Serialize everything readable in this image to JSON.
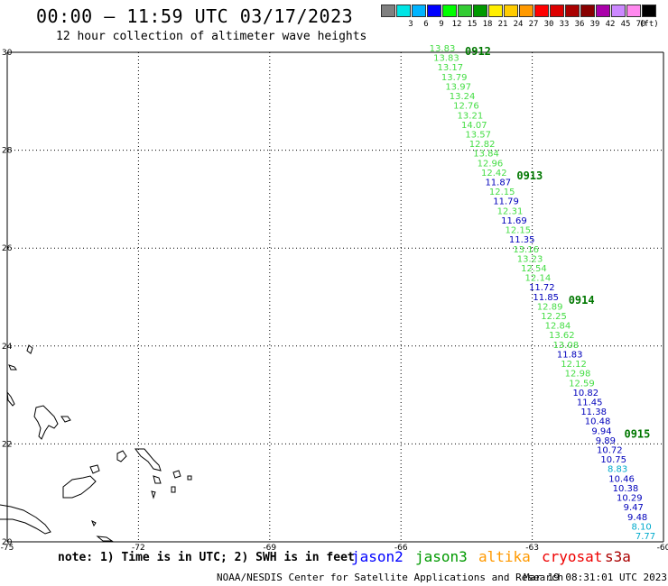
{
  "header": {
    "title": "00:00 – 11:59 UTC 03/17/2023",
    "subtitle": "12 hour collection of altimeter wave heights"
  },
  "legend": {
    "items": [
      {
        "label": "",
        "color": "#808080"
      },
      {
        "label": "3",
        "color": "#00e5e5"
      },
      {
        "label": "6",
        "color": "#00b4ff"
      },
      {
        "label": "9",
        "color": "#0000ff"
      },
      {
        "label": "12",
        "color": "#00ff00"
      },
      {
        "label": "15",
        "color": "#33cc33"
      },
      {
        "label": "18",
        "color": "#009900"
      },
      {
        "label": "21",
        "color": "#ffee00"
      },
      {
        "label": "24",
        "color": "#ffcc00"
      },
      {
        "label": "27",
        "color": "#ff9900"
      },
      {
        "label": "30",
        "color": "#ff0000"
      },
      {
        "label": "33",
        "color": "#dd0000"
      },
      {
        "label": "36",
        "color": "#aa0000"
      },
      {
        "label": "39",
        "color": "#880000"
      },
      {
        "label": "42",
        "color": "#aa00aa"
      },
      {
        "label": "45",
        "color": "#cc88ff"
      },
      {
        "label": "70",
        "color": "#ff88ee"
      },
      {
        "label": "",
        "color": "#000000"
      }
    ],
    "unit": "(ft)"
  },
  "axes": {
    "lon_ticks": [
      "-75",
      "-72",
      "-69",
      "-66",
      "-63",
      "-60"
    ],
    "lat_ticks": [
      "30",
      "28",
      "26",
      "24",
      "22",
      "20"
    ],
    "lon_range": [
      -75,
      -60
    ],
    "lat_range": [
      20,
      30
    ]
  },
  "track": {
    "time_labels": [
      {
        "text": "0912",
        "row": 0
      },
      {
        "text": "0913",
        "row": 13
      },
      {
        "text": "0914",
        "row": 26
      },
      {
        "text": "0915",
        "row": 40
      }
    ],
    "colors": {
      "light_green": "#44dd44",
      "dark_green": "#007700",
      "blue": "#0000bb",
      "cyan": "#00aacc"
    },
    "points": [
      {
        "v": "13.83",
        "c": "light_green"
      },
      {
        "v": "13.83",
        "c": "light_green"
      },
      {
        "v": "13.17",
        "c": "light_green"
      },
      {
        "v": "13.79",
        "c": "light_green"
      },
      {
        "v": "13.97",
        "c": "light_green"
      },
      {
        "v": "13.24",
        "c": "light_green"
      },
      {
        "v": "12.76",
        "c": "light_green"
      },
      {
        "v": "13.21",
        "c": "light_green"
      },
      {
        "v": "14.07",
        "c": "light_green"
      },
      {
        "v": "13.57",
        "c": "light_green"
      },
      {
        "v": "12.82",
        "c": "light_green"
      },
      {
        "v": "13.84",
        "c": "light_green"
      },
      {
        "v": "12.96",
        "c": "light_green"
      },
      {
        "v": "12.42",
        "c": "light_green"
      },
      {
        "v": "11.87",
        "c": "blue"
      },
      {
        "v": "12.15",
        "c": "light_green"
      },
      {
        "v": "11.79",
        "c": "blue"
      },
      {
        "v": "12.31",
        "c": "light_green"
      },
      {
        "v": "11.69",
        "c": "blue"
      },
      {
        "v": "12.15",
        "c": "light_green"
      },
      {
        "v": "11.35",
        "c": "blue"
      },
      {
        "v": "13.16",
        "c": "light_green"
      },
      {
        "v": "13.23",
        "c": "light_green"
      },
      {
        "v": "12.54",
        "c": "light_green"
      },
      {
        "v": "12.14",
        "c": "light_green"
      },
      {
        "v": "11.72",
        "c": "blue"
      },
      {
        "v": "11.85",
        "c": "blue"
      },
      {
        "v": "12.89",
        "c": "light_green"
      },
      {
        "v": "12.25",
        "c": "light_green"
      },
      {
        "v": "12.84",
        "c": "light_green"
      },
      {
        "v": "13.62",
        "c": "light_green"
      },
      {
        "v": "13.08",
        "c": "light_green"
      },
      {
        "v": "11.83",
        "c": "blue"
      },
      {
        "v": "12.12",
        "c": "light_green"
      },
      {
        "v": "12.98",
        "c": "light_green"
      },
      {
        "v": "12.59",
        "c": "light_green"
      },
      {
        "v": "10.82",
        "c": "blue"
      },
      {
        "v": "11.45",
        "c": "blue"
      },
      {
        "v": "11.38",
        "c": "blue"
      },
      {
        "v": "10.48",
        "c": "blue"
      },
      {
        "v": "9.94",
        "c": "blue"
      },
      {
        "v": "9.89",
        "c": "blue"
      },
      {
        "v": "10.72",
        "c": "blue"
      },
      {
        "v": "10.75",
        "c": "blue"
      },
      {
        "v": "8.83",
        "c": "cyan"
      },
      {
        "v": "10.46",
        "c": "blue"
      },
      {
        "v": "10.38",
        "c": "blue"
      },
      {
        "v": "10.29",
        "c": "blue"
      },
      {
        "v": "9.47",
        "c": "blue"
      },
      {
        "v": "9.48",
        "c": "blue"
      },
      {
        "v": "8.10",
        "c": "cyan"
      },
      {
        "v": "7.77",
        "c": "cyan"
      }
    ]
  },
  "footer": {
    "note": "note: 1) Time is in UTC; 2) SWH is in feet",
    "satellites": [
      {
        "name": "jason2",
        "color": "#0000ff"
      },
      {
        "name": "jason3",
        "color": "#009900"
      },
      {
        "name": "altika",
        "color": "#ff9900"
      },
      {
        "name": "cryosat",
        "color": "#ee0000"
      },
      {
        "name": "s3a",
        "color": "#aa0000"
      }
    ],
    "credit": "NOAA/NESDIS Center for Satellite Applications and Research",
    "timestamp": "Mar 19 08:31:01 UTC 2023"
  }
}
